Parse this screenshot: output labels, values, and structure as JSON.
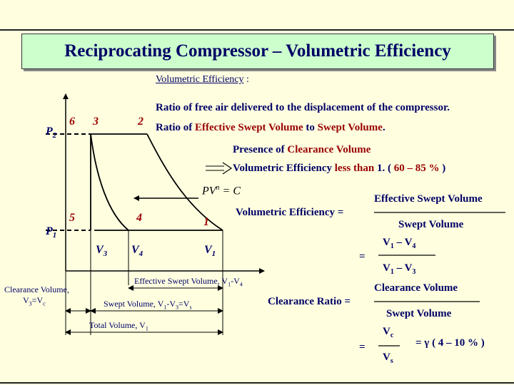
{
  "title": "Reciprocating Compressor – Volumetric Efficiency",
  "heading": {
    "underlined": "Volumetric Efficiency",
    "suffix": " :"
  },
  "definitions": {
    "line1": "Ratio of free air delivered to the displacement of the compressor.",
    "line2_prefix": "Ratio of ",
    "line2_highlight1": "Effective Swept Volume",
    "line2_middle": " to ",
    "line2_highlight2": "Swept Volume",
    "line2_suffix": "."
  },
  "clearance_note": {
    "prefix": "Presence of ",
    "highlight": "Clearance Volume",
    "result_prefix": "Volumetric Efficiency ",
    "result_highlight1": "less than",
    "result_middle": " 1. ( ",
    "result_highlight2": "60 – 85 %",
    "result_suffix": " )"
  },
  "diagram": {
    "p2": "P",
    "p2_sub": "2",
    "p1": "P",
    "p1_sub": "1",
    "pt6": "6",
    "pt3": "3",
    "pt2": "2",
    "pt5": "5",
    "pt4": "4",
    "pt1": "1",
    "v3": "V",
    "v3_sub": "3",
    "v4": "V",
    "v4_sub": "4",
    "v1": "V",
    "v1_sub": "1",
    "polytropic": "PV",
    "polytropic_exp": "n",
    "polytropic_rhs": " = C",
    "effective_swept": "Effective Swept Volume, V",
    "effective_swept_tail": "1",
    "effective_swept_tail2": "-V",
    "effective_swept_tail3": "4",
    "swept": "Swept Volume, V",
    "swept_tail": "1",
    "swept_tail2": "-V",
    "swept_tail3": "3",
    "swept_tail4": "=V",
    "swept_tail5": "s",
    "total": "Total Volume, V",
    "total_sub": "1",
    "clearance_label1": "Clearance Volume,",
    "clearance_label2": "V",
    "clearance_sub1": "3",
    "clearance_label3": "=V",
    "clearance_sub2": "c"
  },
  "equations": {
    "ve_label": "Volumetric Efficiency =",
    "ve_num": "Effective Swept Volume",
    "ve_den": "Swept Volume",
    "eq": "=",
    "ve2_num": "V",
    "ve2_num_a": "1",
    "ve2_num_mid": " – V",
    "ve2_num_b": "4",
    "ve2_den": "V",
    "ve2_den_a": "1",
    "ve2_den_mid": " – V",
    "ve2_den_b": "3",
    "cr_label": "Clearance Ratio =",
    "cr_num": "Clearance Volume",
    "cr_den": "Swept Volume",
    "cr2_num": "V",
    "cr2_num_sub": "c",
    "cr2_den": "V",
    "cr2_den_sub": "s",
    "gamma": "= γ  ( 4 – 10 % )"
  }
}
